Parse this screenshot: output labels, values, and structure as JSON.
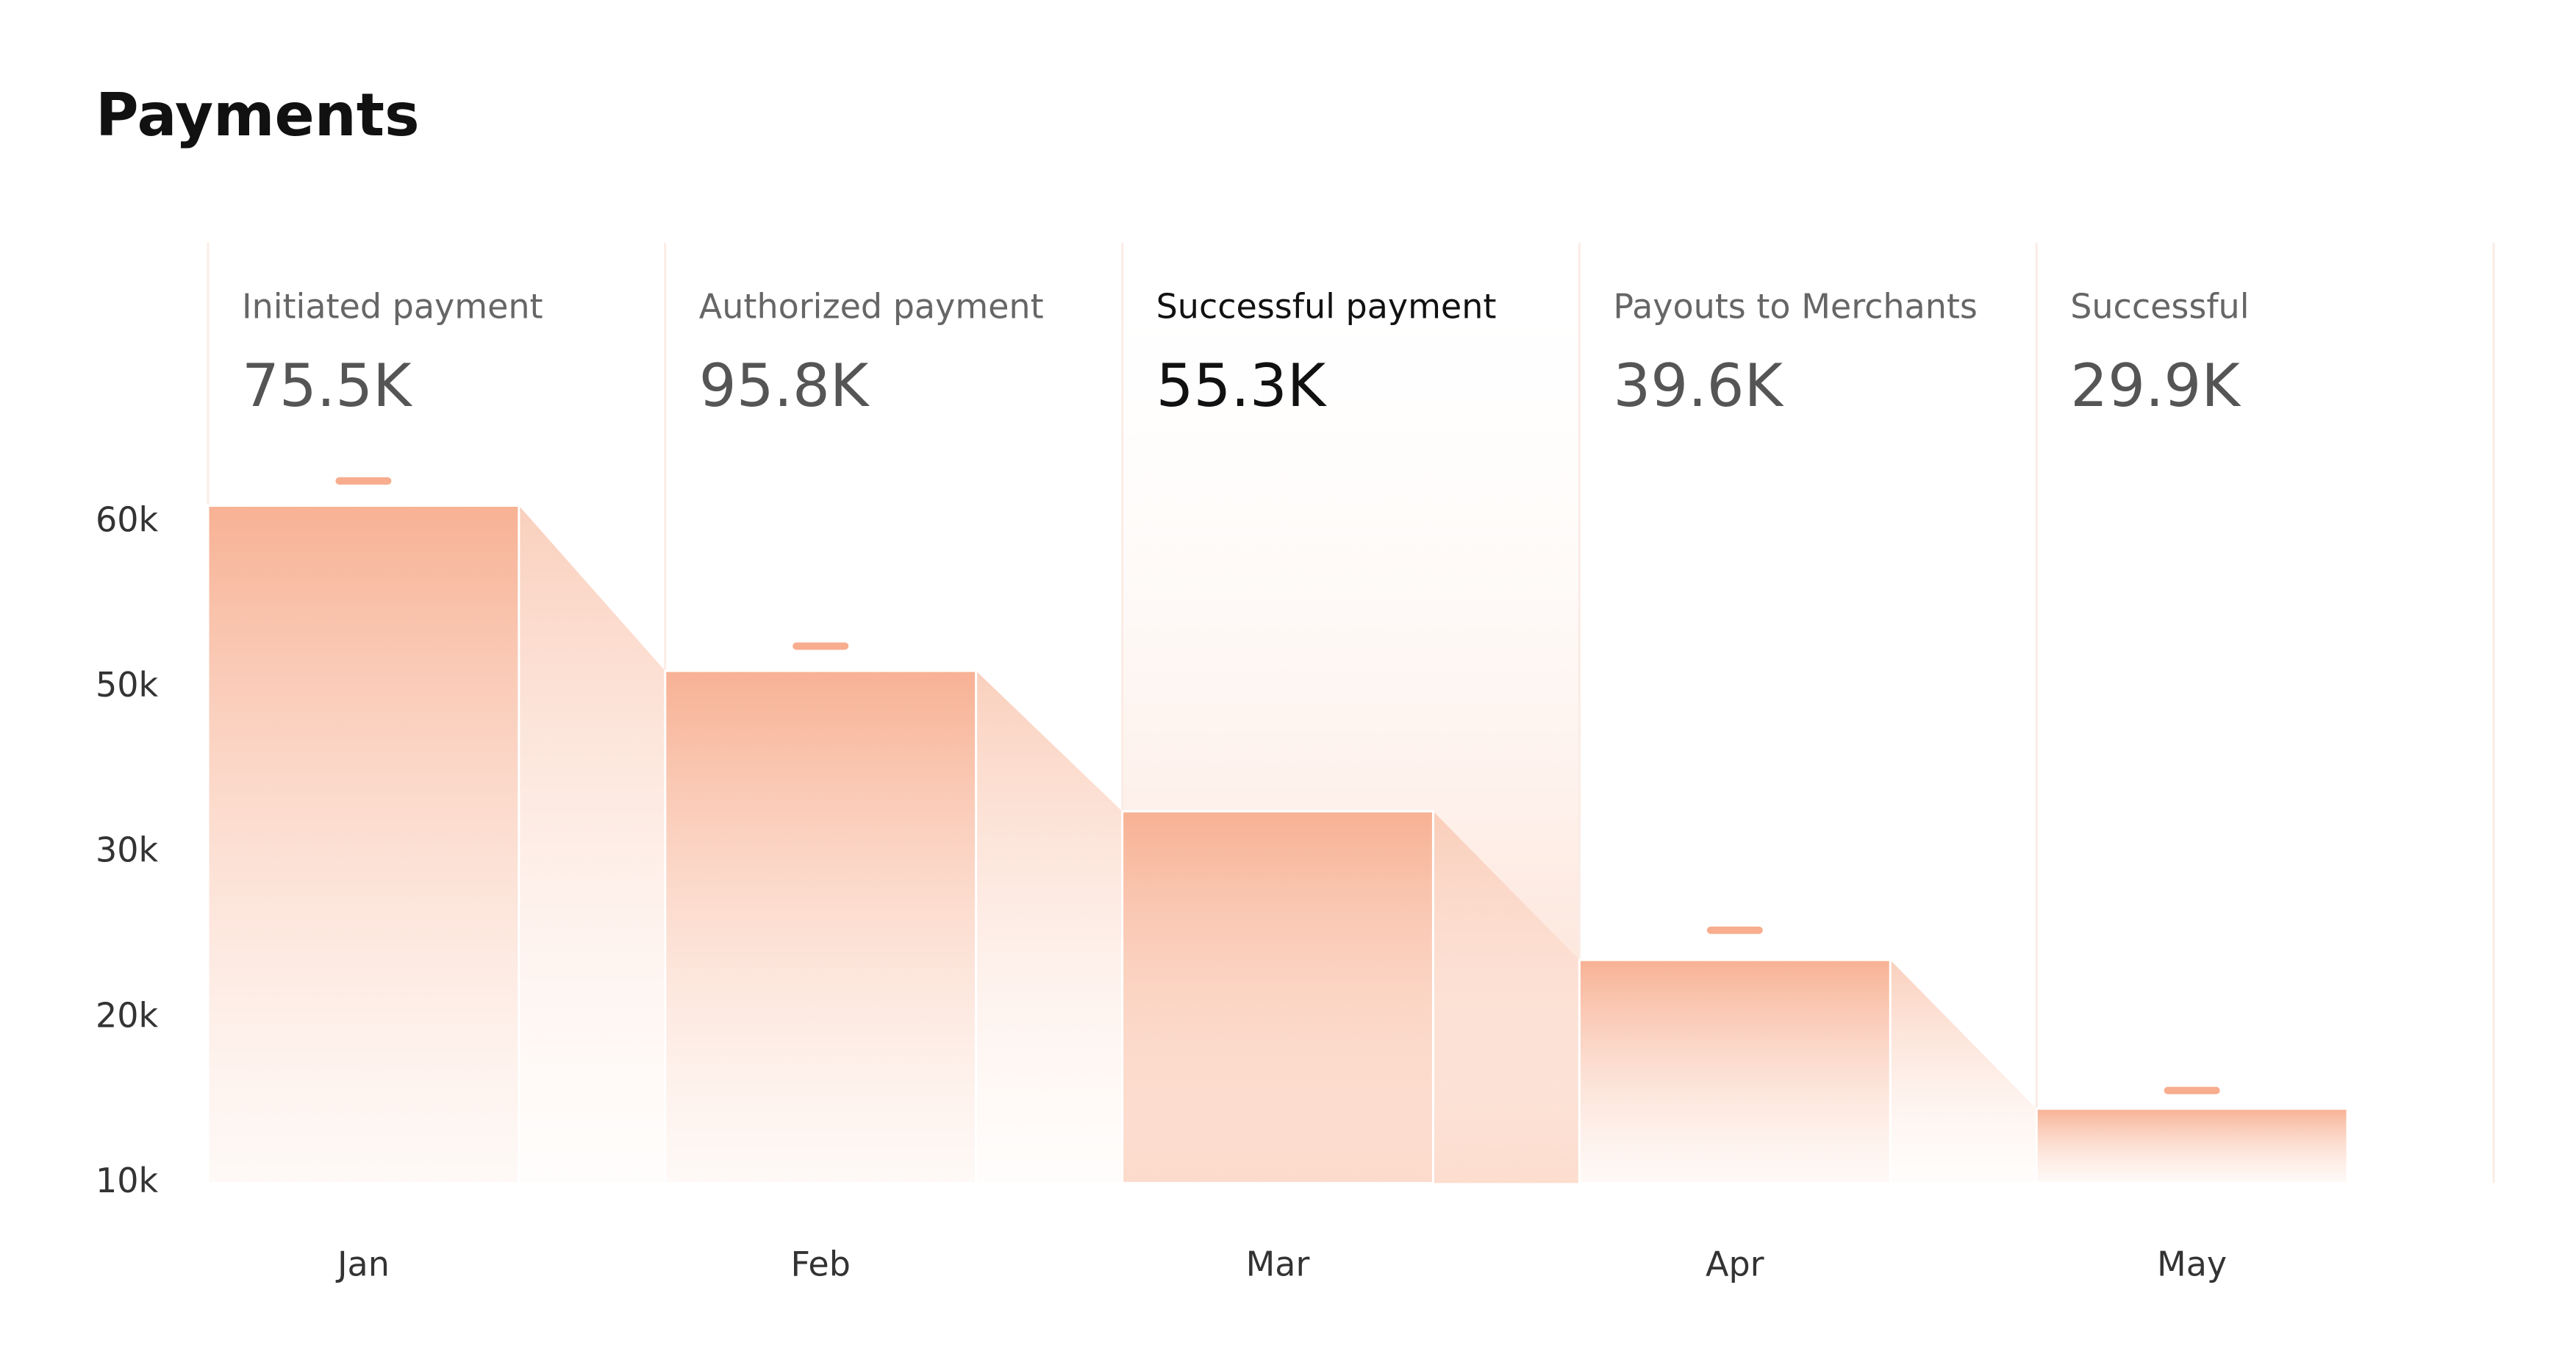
{
  "chart_data": {
    "type": "funnel-bar",
    "title": "Payments",
    "stages": [
      {
        "label": "Initiated payment",
        "value": "75.5K"
      },
      {
        "label": "Authorized payment",
        "value": "95.8K"
      },
      {
        "label": "Successful payment",
        "value": "55.3K"
      },
      {
        "label": "Payouts to Merchants",
        "value": "39.6K"
      },
      {
        "label": "Successful",
        "value": "29.9K"
      }
    ],
    "categories": [
      "Jan",
      "Feb",
      "Mar",
      "Apr",
      "May"
    ],
    "values": [
      61000,
      51000,
      35000,
      23500,
      14500
    ],
    "targets": [
      62500,
      52500,
      null,
      25300,
      15600
    ],
    "yticks": [
      {
        "value": 60000,
        "label": "60k"
      },
      {
        "value": 50000,
        "label": "50k"
      },
      {
        "value": 30000,
        "label": "30k"
      },
      {
        "value": 20000,
        "label": "20k"
      },
      {
        "value": 10000,
        "label": "10k"
      }
    ],
    "color": "#f7ad8e",
    "highlight_index": 2
  }
}
